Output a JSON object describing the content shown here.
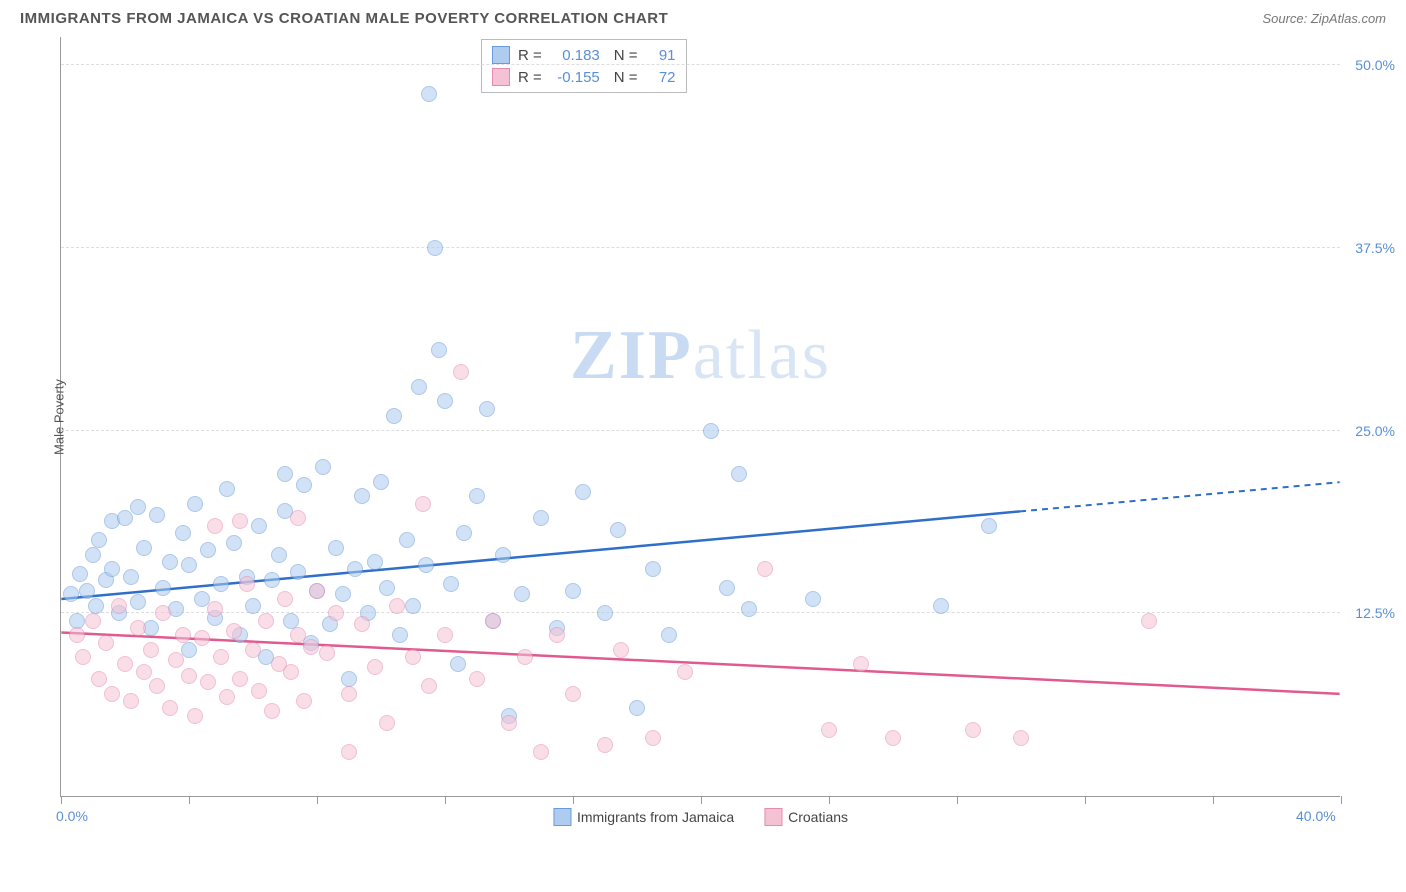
{
  "title": "IMMIGRANTS FROM JAMAICA VS CROATIAN MALE POVERTY CORRELATION CHART",
  "source": "Source: ZipAtlas.com",
  "watermark": {
    "bold": "ZIP",
    "light": "atlas"
  },
  "chart": {
    "type": "scatter",
    "xlim": [
      0,
      40
    ],
    "ylim": [
      0,
      52
    ],
    "x_ticks": [
      0,
      4,
      8,
      12,
      16,
      20,
      24,
      28,
      32,
      36,
      40
    ],
    "x_visible_labels": {
      "0": "0.0%",
      "40": "40.0%"
    },
    "y_grid": [
      12.5,
      25.0,
      37.5,
      50.0
    ],
    "y_labels": [
      "12.5%",
      "25.0%",
      "37.5%",
      "50.0%"
    ],
    "y_axis_label": "Male Poverty",
    "background_color": "#ffffff",
    "grid_color": "#dddddd",
    "axis_color": "#999999",
    "tick_label_color": "#5a8fd6",
    "marker_radius": 8,
    "marker_opacity": 0.55,
    "series": [
      {
        "name": "Immigrants from Jamaica",
        "fill": "#aeccf0",
        "stroke": "#6a9bd8",
        "trend_color": "#2f6fc9",
        "R": "0.183",
        "N": "91",
        "trend": {
          "x1": 0,
          "y1": 13.5,
          "x2": 40,
          "y2": 21.5,
          "solid_until_x": 30
        },
        "points": [
          [
            0.3,
            13.8
          ],
          [
            0.5,
            12.0
          ],
          [
            0.6,
            15.2
          ],
          [
            0.8,
            14.0
          ],
          [
            1.0,
            16.5
          ],
          [
            1.1,
            13.0
          ],
          [
            1.2,
            17.5
          ],
          [
            1.4,
            14.8
          ],
          [
            1.6,
            15.5
          ],
          [
            1.6,
            18.8
          ],
          [
            1.8,
            12.5
          ],
          [
            2.0,
            19.0
          ],
          [
            2.2,
            15.0
          ],
          [
            2.4,
            13.3
          ],
          [
            2.4,
            19.8
          ],
          [
            2.6,
            17.0
          ],
          [
            2.8,
            11.5
          ],
          [
            3.0,
            19.2
          ],
          [
            3.2,
            14.2
          ],
          [
            3.4,
            16.0
          ],
          [
            3.6,
            12.8
          ],
          [
            3.8,
            18.0
          ],
          [
            4.0,
            15.8
          ],
          [
            4.0,
            10.0
          ],
          [
            4.2,
            20.0
          ],
          [
            4.4,
            13.5
          ],
          [
            4.6,
            16.8
          ],
          [
            4.8,
            12.2
          ],
          [
            5.0,
            14.5
          ],
          [
            5.2,
            21.0
          ],
          [
            5.4,
            17.3
          ],
          [
            5.6,
            11.0
          ],
          [
            5.8,
            15.0
          ],
          [
            6.0,
            13.0
          ],
          [
            6.2,
            18.5
          ],
          [
            6.4,
            9.5
          ],
          [
            6.6,
            14.8
          ],
          [
            6.8,
            16.5
          ],
          [
            7.0,
            19.5
          ],
          [
            7.0,
            22.0
          ],
          [
            7.2,
            12.0
          ],
          [
            7.4,
            15.3
          ],
          [
            7.6,
            21.3
          ],
          [
            7.8,
            10.5
          ],
          [
            8.0,
            14.0
          ],
          [
            8.2,
            22.5
          ],
          [
            8.4,
            11.8
          ],
          [
            8.6,
            17.0
          ],
          [
            8.8,
            13.8
          ],
          [
            9.0,
            8.0
          ],
          [
            9.2,
            15.5
          ],
          [
            9.4,
            20.5
          ],
          [
            9.6,
            12.5
          ],
          [
            9.8,
            16.0
          ],
          [
            10.0,
            21.5
          ],
          [
            10.2,
            14.2
          ],
          [
            10.4,
            26.0
          ],
          [
            10.6,
            11.0
          ],
          [
            10.8,
            17.5
          ],
          [
            11.0,
            13.0
          ],
          [
            11.2,
            28.0
          ],
          [
            11.4,
            15.8
          ],
          [
            11.7,
            37.5
          ],
          [
            11.5,
            48.0
          ],
          [
            11.8,
            30.5
          ],
          [
            12.0,
            27.0
          ],
          [
            12.2,
            14.5
          ],
          [
            12.4,
            9.0
          ],
          [
            12.6,
            18.0
          ],
          [
            13.0,
            20.5
          ],
          [
            13.3,
            26.5
          ],
          [
            13.5,
            12.0
          ],
          [
            13.8,
            16.5
          ],
          [
            14.0,
            5.5
          ],
          [
            14.4,
            13.8
          ],
          [
            15.0,
            19.0
          ],
          [
            15.5,
            11.5
          ],
          [
            16.0,
            14.0
          ],
          [
            16.3,
            20.8
          ],
          [
            17.0,
            12.5
          ],
          [
            17.4,
            18.2
          ],
          [
            18.0,
            6.0
          ],
          [
            18.5,
            15.5
          ],
          [
            19.0,
            11.0
          ],
          [
            20.3,
            25.0
          ],
          [
            20.8,
            14.2
          ],
          [
            21.2,
            22.0
          ],
          [
            21.5,
            12.8
          ],
          [
            23.5,
            13.5
          ],
          [
            27.5,
            13.0
          ],
          [
            29.0,
            18.5
          ]
        ]
      },
      {
        "name": "Croatians",
        "fill": "#f5c2d4",
        "stroke": "#e68bb0",
        "trend_color": "#e05a8e",
        "R": "-0.155",
        "N": "72",
        "trend": {
          "x1": 0,
          "y1": 11.2,
          "x2": 40,
          "y2": 7.0,
          "solid_until_x": 40
        },
        "points": [
          [
            0.5,
            11.0
          ],
          [
            0.7,
            9.5
          ],
          [
            1.0,
            12.0
          ],
          [
            1.2,
            8.0
          ],
          [
            1.4,
            10.5
          ],
          [
            1.6,
            7.0
          ],
          [
            1.8,
            13.0
          ],
          [
            2.0,
            9.0
          ],
          [
            2.2,
            6.5
          ],
          [
            2.4,
            11.5
          ],
          [
            2.6,
            8.5
          ],
          [
            2.8,
            10.0
          ],
          [
            3.0,
            7.5
          ],
          [
            3.2,
            12.5
          ],
          [
            3.4,
            6.0
          ],
          [
            3.6,
            9.3
          ],
          [
            3.8,
            11.0
          ],
          [
            4.0,
            8.2
          ],
          [
            4.2,
            5.5
          ],
          [
            4.4,
            10.8
          ],
          [
            4.6,
            7.8
          ],
          [
            4.8,
            18.5
          ],
          [
            4.8,
            12.8
          ],
          [
            5.0,
            9.5
          ],
          [
            5.2,
            6.8
          ],
          [
            5.4,
            11.3
          ],
          [
            5.6,
            18.8
          ],
          [
            5.6,
            8.0
          ],
          [
            5.8,
            14.5
          ],
          [
            6.0,
            10.0
          ],
          [
            6.2,
            7.2
          ],
          [
            6.4,
            12.0
          ],
          [
            6.6,
            5.8
          ],
          [
            6.8,
            9.0
          ],
          [
            7.0,
            13.5
          ],
          [
            7.2,
            8.5
          ],
          [
            7.4,
            19.0
          ],
          [
            7.4,
            11.0
          ],
          [
            7.6,
            6.5
          ],
          [
            7.8,
            10.2
          ],
          [
            8.0,
            14.0
          ],
          [
            8.3,
            9.8
          ],
          [
            8.6,
            12.5
          ],
          [
            9.0,
            3.0
          ],
          [
            9.0,
            7.0
          ],
          [
            9.4,
            11.8
          ],
          [
            9.8,
            8.8
          ],
          [
            10.2,
            5.0
          ],
          [
            10.5,
            13.0
          ],
          [
            11.0,
            9.5
          ],
          [
            11.3,
            20.0
          ],
          [
            11.5,
            7.5
          ],
          [
            12.0,
            11.0
          ],
          [
            12.5,
            29.0
          ],
          [
            13.0,
            8.0
          ],
          [
            13.5,
            12.0
          ],
          [
            14.0,
            5.0
          ],
          [
            14.5,
            9.5
          ],
          [
            15.0,
            3.0
          ],
          [
            15.5,
            11.0
          ],
          [
            16.0,
            7.0
          ],
          [
            17.0,
            3.5
          ],
          [
            17.5,
            10.0
          ],
          [
            18.5,
            4.0
          ],
          [
            19.5,
            8.5
          ],
          [
            22.0,
            15.5
          ],
          [
            24.0,
            4.5
          ],
          [
            25.0,
            9.0
          ],
          [
            26.0,
            4.0
          ],
          [
            28.5,
            4.5
          ],
          [
            30.0,
            4.0
          ],
          [
            34.0,
            12.0
          ]
        ]
      }
    ]
  },
  "stats_labels": {
    "R": "R =",
    "N": "N ="
  },
  "legend": {
    "items": [
      {
        "label": "Immigrants from Jamaica",
        "fill": "#aeccf0",
        "stroke": "#6a9bd8"
      },
      {
        "label": "Croatians",
        "fill": "#f5c2d4",
        "stroke": "#e68bb0"
      }
    ]
  }
}
